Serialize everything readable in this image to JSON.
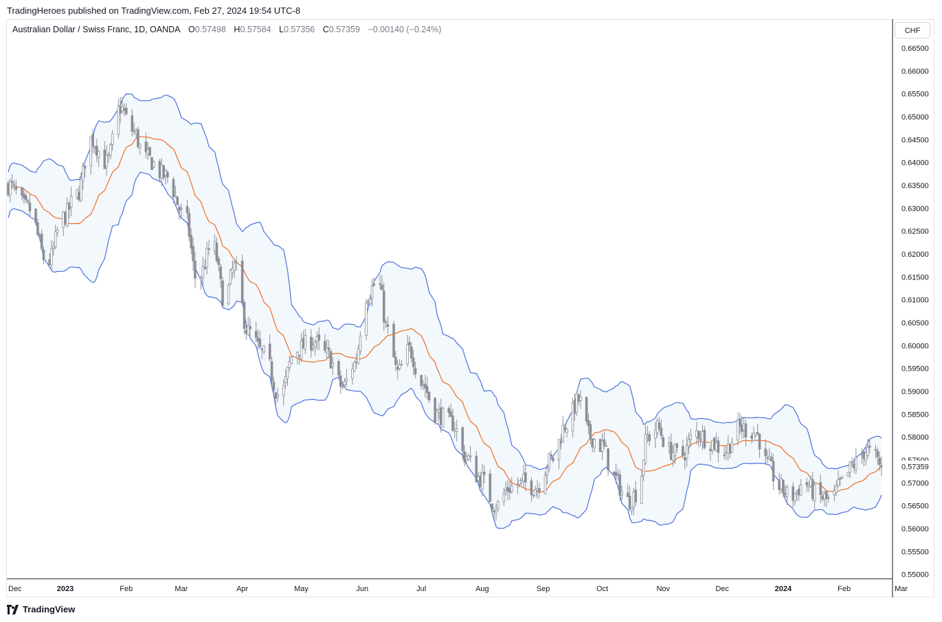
{
  "header": {
    "publisher": "TradingHeroes published on TradingView.com, Feb 27, 2024 19:54 UTC-8"
  },
  "legend": {
    "symbol": "Australian Dollar / Swiss Franc, 1D, OANDA",
    "open_label": "O",
    "open": "0.57498",
    "high_label": "H",
    "high": "0.57584",
    "low_label": "L",
    "low": "0.57356",
    "close_label": "C",
    "close": "0.57359",
    "change": "−0.00140 (−0.24%)"
  },
  "currency_button": "CHF",
  "footer": {
    "brand": "TradingView"
  },
  "colors": {
    "upper_band": "#4a6fdc",
    "lower_band": "#4a6fdc",
    "basis": "#f06c1e",
    "band_fill": "#f3f8fd",
    "candle": "#8b8e96",
    "price_tag": "#131722"
  },
  "chart_data": {
    "type": "candlestick",
    "indicator": "Bollinger Bands",
    "ylim": [
      0.5495,
      0.6662
    ],
    "x_tick_labels": [
      {
        "label": "Dec",
        "day": 0,
        "bold": false
      },
      {
        "label": "2023",
        "day": 29,
        "bold": true
      },
      {
        "label": "Feb",
        "day": 60,
        "bold": false
      },
      {
        "label": "Mar",
        "day": 88,
        "bold": false
      },
      {
        "label": "Apr",
        "day": 119,
        "bold": false
      },
      {
        "label": "May",
        "day": 149,
        "bold": false
      },
      {
        "label": "Jun",
        "day": 180,
        "bold": false
      },
      {
        "label": "Jul",
        "day": 210,
        "bold": false
      },
      {
        "label": "Aug",
        "day": 241,
        "bold": false
      },
      {
        "label": "Sep",
        "day": 272,
        "bold": false
      },
      {
        "label": "Oct",
        "day": 302,
        "bold": false
      },
      {
        "label": "Nov",
        "day": 333,
        "bold": false
      },
      {
        "label": "Dec",
        "day": 363,
        "bold": false
      },
      {
        "label": "2024",
        "day": 394,
        "bold": true
      },
      {
        "label": "Feb",
        "day": 425,
        "bold": false
      },
      {
        "label": "Mar",
        "day": 454,
        "bold": false
      }
    ],
    "y_ticks": [
      "0.55000",
      "0.55500",
      "0.56000",
      "0.56500",
      "0.57000",
      "0.57500",
      "0.58000",
      "0.58500",
      "0.59000",
      "0.59500",
      "0.60000",
      "0.60500",
      "0.61000",
      "0.61500",
      "0.62000",
      "0.62500",
      "0.63000",
      "0.63500",
      "0.64000",
      "0.64500",
      "0.65000",
      "0.65500",
      "0.66000",
      "0.66500"
    ],
    "last_price": "0.57359",
    "last_price_value": 0.57359,
    "price_anchors": [
      {
        "day": 0,
        "price": 0.635
      },
      {
        "day": 10,
        "price": 0.63
      },
      {
        "day": 20,
        "price": 0.618
      },
      {
        "day": 28,
        "price": 0.628
      },
      {
        "day": 35,
        "price": 0.633
      },
      {
        "day": 42,
        "price": 0.645
      },
      {
        "day": 50,
        "price": 0.64
      },
      {
        "day": 57,
        "price": 0.652
      },
      {
        "day": 63,
        "price": 0.647
      },
      {
        "day": 70,
        "price": 0.641
      },
      {
        "day": 80,
        "price": 0.637
      },
      {
        "day": 90,
        "price": 0.628
      },
      {
        "day": 96,
        "price": 0.614
      },
      {
        "day": 104,
        "price": 0.622
      },
      {
        "day": 110,
        "price": 0.61
      },
      {
        "day": 115,
        "price": 0.617
      },
      {
        "day": 122,
        "price": 0.603
      },
      {
        "day": 130,
        "price": 0.598
      },
      {
        "day": 138,
        "price": 0.589
      },
      {
        "day": 146,
        "price": 0.599
      },
      {
        "day": 155,
        "price": 0.601
      },
      {
        "day": 162,
        "price": 0.598
      },
      {
        "day": 170,
        "price": 0.591
      },
      {
        "day": 176,
        "price": 0.596
      },
      {
        "day": 182,
        "price": 0.611
      },
      {
        "day": 188,
        "price": 0.614
      },
      {
        "day": 193,
        "price": 0.603
      },
      {
        "day": 198,
        "price": 0.594
      },
      {
        "day": 204,
        "price": 0.599
      },
      {
        "day": 210,
        "price": 0.592
      },
      {
        "day": 218,
        "price": 0.585
      },
      {
        "day": 226,
        "price": 0.583
      },
      {
        "day": 232,
        "price": 0.576
      },
      {
        "day": 240,
        "price": 0.571
      },
      {
        "day": 248,
        "price": 0.565
      },
      {
        "day": 255,
        "price": 0.569
      },
      {
        "day": 262,
        "price": 0.57
      },
      {
        "day": 268,
        "price": 0.569
      },
      {
        "day": 276,
        "price": 0.575
      },
      {
        "day": 284,
        "price": 0.583
      },
      {
        "day": 290,
        "price": 0.588
      },
      {
        "day": 296,
        "price": 0.58
      },
      {
        "day": 302,
        "price": 0.578
      },
      {
        "day": 308,
        "price": 0.571
      },
      {
        "day": 315,
        "price": 0.566
      },
      {
        "day": 320,
        "price": 0.568
      },
      {
        "day": 325,
        "price": 0.58
      },
      {
        "day": 330,
        "price": 0.582
      },
      {
        "day": 336,
        "price": 0.577
      },
      {
        "day": 342,
        "price": 0.576
      },
      {
        "day": 350,
        "price": 0.581
      },
      {
        "day": 357,
        "price": 0.579
      },
      {
        "day": 364,
        "price": 0.577
      },
      {
        "day": 372,
        "price": 0.582
      },
      {
        "day": 380,
        "price": 0.581
      },
      {
        "day": 386,
        "price": 0.574
      },
      {
        "day": 392,
        "price": 0.569
      },
      {
        "day": 398,
        "price": 0.567
      },
      {
        "day": 405,
        "price": 0.57
      },
      {
        "day": 412,
        "price": 0.567
      },
      {
        "day": 418,
        "price": 0.566
      },
      {
        "day": 424,
        "price": 0.57
      },
      {
        "day": 430,
        "price": 0.574
      },
      {
        "day": 436,
        "price": 0.577
      },
      {
        "day": 440,
        "price": 0.576
      },
      {
        "day": 444,
        "price": 0.5736
      }
    ]
  }
}
